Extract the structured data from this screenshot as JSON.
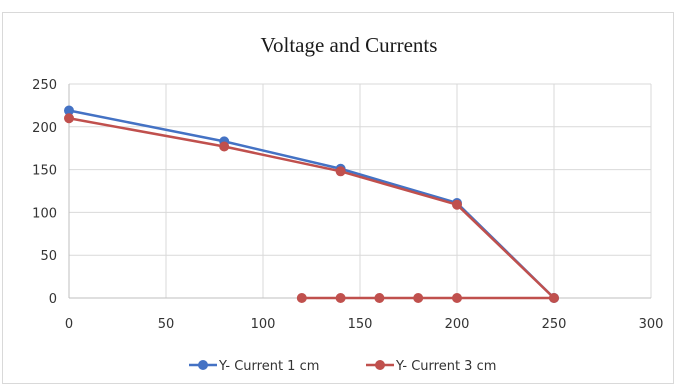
{
  "chart_data": {
    "type": "scatter",
    "title": "Voltage and Currents",
    "xlabel": "",
    "ylabel": "",
    "xlim": [
      0,
      300
    ],
    "ylim": [
      0,
      250
    ],
    "x_ticks": [
      0,
      50,
      100,
      150,
      200,
      250,
      300
    ],
    "y_ticks": [
      0,
      50,
      100,
      150,
      200,
      250
    ],
    "grid": true,
    "legend_position": "bottom",
    "series": [
      {
        "name": "Y- Current 1 cm",
        "color": "#4472c4",
        "points": [
          [
            0,
            219
          ],
          [
            80,
            183
          ],
          [
            140,
            151
          ],
          [
            200,
            111
          ],
          [
            250,
            0
          ]
        ]
      },
      {
        "name": "Y- Current 3 cm",
        "color": "#c0504d",
        "points": [
          [
            0,
            210
          ],
          [
            80,
            177
          ],
          [
            140,
            148
          ],
          [
            200,
            109
          ],
          [
            250,
            0
          ],
          [
            200,
            0
          ],
          [
            180,
            0
          ],
          [
            160,
            0
          ],
          [
            140,
            0
          ],
          [
            120,
            0
          ]
        ]
      }
    ]
  }
}
